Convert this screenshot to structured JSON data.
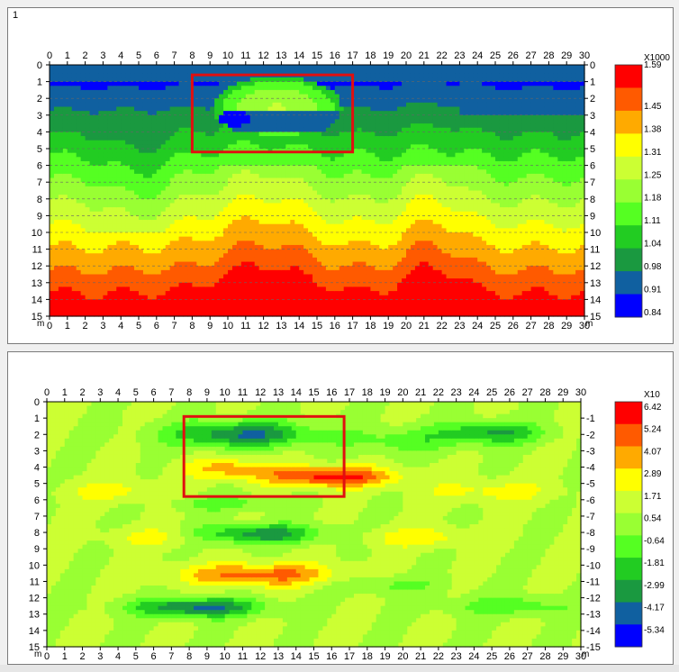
{
  "panels": [
    {
      "number": "1",
      "scale_multiplier": "X1000",
      "x_unit": "m",
      "x_ticks": [
        "0",
        "1",
        "2",
        "3",
        "4",
        "5",
        "6",
        "7",
        "8",
        "9",
        "10",
        "11",
        "12",
        "13",
        "14",
        "15",
        "16",
        "17",
        "18",
        "19",
        "20",
        "21",
        "22",
        "23",
        "24",
        "25",
        "26",
        "27",
        "28",
        "29",
        "30"
      ],
      "y_ticks": [
        "0",
        "1",
        "2",
        "3",
        "4",
        "5",
        "6",
        "7",
        "8",
        "9",
        "10",
        "11",
        "12",
        "13",
        "14",
        "15"
      ],
      "y_ticks_right": [
        "0",
        "1",
        "2",
        "3",
        "4",
        "5",
        "6",
        "7",
        "8",
        "9",
        "10",
        "11",
        "12",
        "13",
        "14",
        "15"
      ],
      "colorbar_labels": [
        "1.59",
        "1.45",
        "1.38",
        "1.31",
        "1.25",
        "1.18",
        "1.11",
        "1.04",
        "0.98",
        "0.91",
        "0.84"
      ],
      "colorbar_colors": [
        "#ff0000",
        "#ff5a00",
        "#ffaa00",
        "#ffff00",
        "#ccff33",
        "#99ff33",
        "#55ff22",
        "#22cc22",
        "#1a9940",
        "#1060a0",
        "#0000ff"
      ],
      "highlight_box": {
        "x": [
          8,
          17
        ],
        "y": [
          0.6,
          5.2
        ]
      }
    },
    {
      "number": "",
      "scale_multiplier": "X10",
      "x_unit": "m",
      "x_ticks": [
        "0",
        "1",
        "2",
        "3",
        "4",
        "5",
        "6",
        "7",
        "8",
        "9",
        "10",
        "11",
        "12",
        "13",
        "14",
        "15",
        "16",
        "17",
        "18",
        "19",
        "20",
        "21",
        "22",
        "23",
        "24",
        "25",
        "26",
        "27",
        "28",
        "29",
        "30"
      ],
      "y_ticks": [
        "0",
        "1",
        "2",
        "3",
        "4",
        "5",
        "6",
        "7",
        "8",
        "9",
        "10",
        "11",
        "12",
        "13",
        "14",
        "15"
      ],
      "y_ticks_right": [
        "-1",
        "-2",
        "-3",
        "-4",
        "-5",
        "-6",
        "-7",
        "-8",
        "-9",
        "-10",
        "-11",
        "-12",
        "-13",
        "-14",
        "-15"
      ],
      "colorbar_labels": [
        "6.42",
        "5.24",
        "4.07",
        "2.89",
        "1.71",
        "0.54",
        "-0.64",
        "-1.81",
        "-2.99",
        "-4.17",
        "-5.34"
      ],
      "colorbar_colors": [
        "#ff0000",
        "#ff5a00",
        "#ffaa00",
        "#ffff00",
        "#ccff33",
        "#99ff33",
        "#55ff22",
        "#22cc22",
        "#1a9940",
        "#1060a0",
        "#0000ff"
      ],
      "highlight_box": {
        "x": [
          7.7,
          16.7
        ],
        "y": [
          0.9,
          5.8
        ]
      }
    }
  ],
  "chart_data": [
    {
      "type": "heatmap",
      "title": "",
      "xlabel": "m",
      "ylabel": "",
      "xlim": [
        0,
        30
      ],
      "ylim": [
        15,
        0
      ],
      "colorbar_multiplier": "X1000",
      "colorbar_values": [
        1.59,
        1.45,
        1.38,
        1.31,
        1.25,
        1.18,
        1.11,
        1.04,
        0.98,
        0.91,
        0.84
      ],
      "depth_profile": [
        {
          "depth": 0.5,
          "value": 0.92
        },
        {
          "depth": 2,
          "value": 1.0
        },
        {
          "depth": 4,
          "value": 1.06
        },
        {
          "depth": 6,
          "value": 1.12
        },
        {
          "depth": 8,
          "value": 1.19
        },
        {
          "depth": 9.5,
          "value": 1.25
        },
        {
          "depth": 10.5,
          "value": 1.31
        },
        {
          "depth": 11.5,
          "value": 1.38
        },
        {
          "depth": 12.5,
          "value": 1.45
        },
        {
          "depth": 14,
          "value": 1.59
        }
      ]
    },
    {
      "type": "heatmap",
      "title": "",
      "xlabel": "m",
      "ylabel": "",
      "xlim": [
        0,
        30
      ],
      "ylim": [
        15,
        0
      ],
      "colorbar_multiplier": "X10",
      "colorbar_values": [
        6.42,
        5.24,
        4.07,
        2.89,
        1.71,
        0.54,
        -0.64,
        -1.81,
        -2.99,
        -4.17,
        -5.34
      ],
      "anomalies": [
        {
          "x": [
            8,
            14
          ],
          "y": 2,
          "value": -4.17
        },
        {
          "x": [
            14,
            20
          ],
          "y": 4.5,
          "value": 5.24
        },
        {
          "x": [
            9,
            13
          ],
          "y": 4,
          "value": 2.89
        },
        {
          "x": [
            9,
            15
          ],
          "y": 8,
          "value": -2.99
        },
        {
          "x": [
            8,
            17
          ],
          "y": 10.5,
          "value": 4.07
        },
        {
          "x": [
            5,
            12
          ],
          "y": 12.5,
          "value": -4.17
        },
        {
          "x": [
            23,
            27
          ],
          "y": 2,
          "value": -2.99
        }
      ]
    }
  ]
}
